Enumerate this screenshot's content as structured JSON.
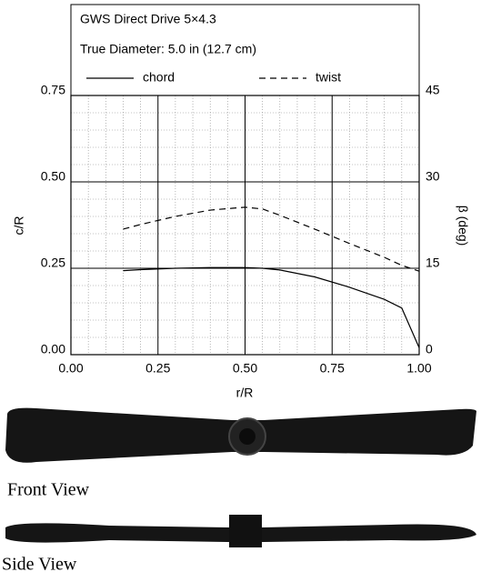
{
  "chart_data": {
    "type": "line",
    "title": "GWS Direct Drive 5×4.3",
    "subtitle": "True Diameter:  5.0 in (12.7 cm)",
    "x": [
      0.15,
      0.2,
      0.3,
      0.4,
      0.5,
      0.55,
      0.6,
      0.7,
      0.8,
      0.9,
      0.95,
      1.0
    ],
    "series": [
      {
        "name": "chord",
        "color": "#000000",
        "dash": "solid",
        "axis": "y",
        "values": [
          0.243,
          0.246,
          0.25,
          0.252,
          0.252,
          0.25,
          0.245,
          0.225,
          0.195,
          0.16,
          0.135,
          0.02
        ]
      },
      {
        "name": "twist",
        "color": "#000000",
        "dash": "dashed",
        "axis": "y2",
        "values": [
          21.8,
          22.6,
          24.0,
          25.1,
          25.6,
          25.3,
          24.2,
          21.8,
          19.3,
          16.9,
          15.5,
          14.5
        ]
      }
    ],
    "xlim": [
      0,
      1
    ],
    "ylim": [
      0,
      0.75
    ],
    "y2lim": [
      0,
      45
    ],
    "xticks": [
      {
        "value": 0,
        "label": "0.00"
      },
      {
        "value": 0.25,
        "label": "0.25"
      },
      {
        "value": 0.5,
        "label": "0.50"
      },
      {
        "value": 0.75,
        "label": "0.75"
      },
      {
        "value": 1,
        "label": "1.00"
      }
    ],
    "yticks": [
      {
        "value": 0,
        "label": "0.00"
      },
      {
        "value": 0.25,
        "label": "0.25"
      },
      {
        "value": 0.5,
        "label": "0.50"
      },
      {
        "value": 0.75,
        "label": "0.75"
      }
    ],
    "y2ticks": [
      0,
      15,
      30,
      45
    ],
    "xlabel": "r/R",
    "ylabel": "c/R",
    "y2label": "β (deg)",
    "grid": true
  },
  "views": {
    "front": "Front View",
    "side": "Side View"
  }
}
